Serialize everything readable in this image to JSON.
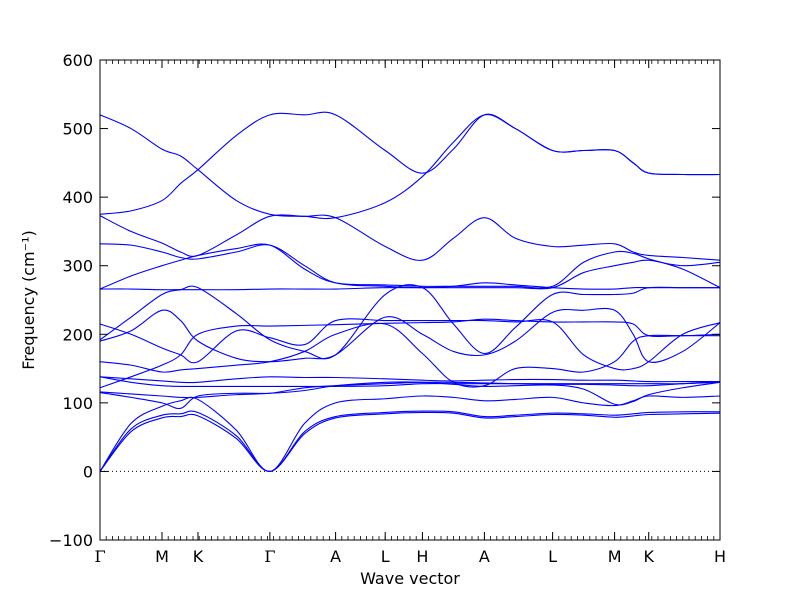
{
  "chart_data": {
    "type": "line",
    "xlabel": "Wave vector",
    "ylabel": "Frequency (cm⁻¹)",
    "ylim": [
      -100,
      600
    ],
    "y_ticks": [
      -100,
      0,
      100,
      200,
      300,
      400,
      500,
      600
    ],
    "y_tick_labels": [
      "−100",
      "0",
      "100",
      "200",
      "300",
      "400",
      "500",
      "600"
    ],
    "x_ticks": [
      0,
      1,
      1.58,
      2.74,
      3.8,
      4.6,
      5.2,
      6.2,
      7.3,
      8.3,
      8.85,
      10
    ],
    "x_tick_labels": [
      "Γ",
      "M",
      "K",
      "Γ",
      "A",
      "L",
      "H",
      "A",
      "L",
      "M",
      "K",
      "H"
    ],
    "xlim": [
      0,
      10
    ],
    "zero_line": true,
    "line_color": "#0000ff",
    "series": [
      {
        "x": [
          0,
          0.5,
          1,
          1.3,
          1.58,
          2.2,
          2.74,
          3.3,
          3.8,
          4.6,
          5.2,
          5.7,
          6.2,
          6.7,
          7.3,
          7.8,
          8.3,
          8.6,
          8.85,
          9.4,
          10
        ],
        "values": [
          0,
          58,
          78,
          80,
          81,
          48,
          0,
          55,
          78,
          84,
          86,
          85,
          78,
          80,
          83,
          82,
          79,
          81,
          83,
          84,
          85
        ]
      },
      {
        "x": [
          0,
          0.5,
          1,
          1.3,
          1.58,
          2.2,
          2.74,
          3.3,
          3.8,
          4.6,
          5.2,
          5.7,
          6.2,
          6.7,
          7.3,
          7.8,
          8.3,
          8.6,
          8.85,
          9.4,
          10
        ],
        "values": [
          0,
          62,
          82,
          84,
          86,
          52,
          0,
          58,
          80,
          86,
          88,
          87,
          80,
          82,
          85,
          84,
          82,
          84,
          86,
          87,
          87
        ]
      },
      {
        "x": [
          0,
          0.5,
          1,
          1.3,
          1.58,
          2.2,
          2.74,
          3.3,
          3.8,
          4.6,
          5.2,
          5.7,
          6.2,
          6.7,
          7.3,
          7.8,
          8.3,
          8.6,
          8.85,
          9.4,
          10
        ],
        "values": [
          0,
          70,
          95,
          103,
          105,
          60,
          0,
          70,
          100,
          106,
          110,
          108,
          103,
          105,
          108,
          100,
          96,
          103,
          110,
          108,
          110
        ]
      },
      {
        "x": [
          0,
          0.5,
          1,
          1.3,
          1.58,
          2.2,
          2.74,
          3.3,
          3.8,
          4.6,
          5.2,
          5.7,
          6.2,
          6.7,
          7.3,
          7.8,
          8.3,
          8.6,
          8.85,
          9.4,
          10
        ],
        "values": [
          115,
          108,
          100,
          92,
          110,
          114,
          114,
          118,
          125,
          130,
          130,
          127,
          124,
          125,
          126,
          120,
          98,
          102,
          112,
          122,
          130
        ]
      },
      {
        "x": [
          0,
          0.5,
          1,
          1.3,
          1.58,
          2.2,
          2.74,
          3.3,
          3.8,
          4.6,
          5.2,
          5.7,
          6.2,
          6.7,
          7.3,
          7.8,
          8.3,
          8.6,
          8.85,
          9.4,
          10
        ],
        "values": [
          116,
          113,
          110,
          108,
          108,
          112,
          114,
          122,
          125,
          128,
          130,
          130,
          129,
          128,
          127,
          127,
          126,
          125,
          125,
          128,
          131
        ]
      },
      {
        "x": [
          0,
          0.5,
          1,
          1.3,
          1.58,
          2.2,
          2.74,
          3.3,
          3.8,
          4.6,
          5.2,
          5.7,
          6.2,
          6.7,
          7.3,
          7.8,
          8.3,
          8.6,
          8.85,
          9.4,
          10
        ],
        "values": [
          122,
          138,
          155,
          170,
          200,
          212,
          212,
          213,
          214,
          216,
          217,
          218,
          222,
          220,
          218,
          218,
          218,
          215,
          198,
          198,
          198
        ]
      },
      {
        "x": [
          0,
          0.5,
          1,
          1.3,
          1.58,
          2.2,
          2.74,
          3.3,
          3.8,
          4.6,
          5.2,
          5.7,
          6.2,
          6.7,
          7.3,
          7.8,
          8.3,
          8.6,
          8.85,
          9.4,
          10
        ],
        "values": [
          138,
          135,
          132,
          130,
          130,
          135,
          138,
          137,
          137,
          135,
          133,
          132,
          133,
          134,
          134,
          133,
          133,
          132,
          131,
          131,
          131
        ]
      },
      {
        "x": [
          0,
          0.5,
          1,
          1.3,
          1.58,
          2.2,
          2.74,
          3.3,
          3.8,
          4.6,
          5.2,
          5.7,
          6.2,
          6.7,
          7.3,
          7.8,
          8.3,
          8.6,
          8.85,
          9.4,
          10
        ],
        "values": [
          138,
          130,
          125,
          124,
          124,
          124,
          124,
          124,
          124,
          125,
          128,
          128,
          128,
          128,
          128,
          128,
          128,
          128,
          128,
          128,
          130
        ]
      },
      {
        "x": [
          0,
          0.5,
          1,
          1.3,
          1.58,
          2.2,
          2.74,
          3.3,
          3.8,
          4.6,
          5.2,
          5.7,
          6.2,
          6.7,
          7.3,
          7.8,
          8.3,
          8.6,
          8.85,
          9.4,
          10
        ],
        "values": [
          160,
          155,
          145,
          148,
          150,
          155,
          160,
          175,
          200,
          215,
          172,
          130,
          125,
          150,
          150,
          145,
          160,
          190,
          198,
          198,
          200
        ]
      },
      {
        "x": [
          0,
          0.5,
          1,
          1.3,
          1.58,
          2.2,
          2.74,
          3.3,
          3.8,
          4.6,
          5.2,
          5.7,
          6.2,
          6.7,
          7.3,
          7.8,
          8.3,
          8.6,
          8.85,
          9.4,
          10
        ],
        "values": [
          190,
          205,
          235,
          220,
          190,
          165,
          160,
          165,
          170,
          225,
          200,
          175,
          170,
          190,
          232,
          235,
          235,
          200,
          160,
          175,
          217
        ]
      },
      {
        "x": [
          0,
          0.5,
          1,
          1.3,
          1.58,
          2.2,
          2.74,
          3.3,
          3.8,
          4.6,
          5.2,
          5.7,
          6.2,
          6.7,
          7.3,
          7.8,
          8.3,
          8.6,
          8.85,
          9.4,
          10
        ],
        "values": [
          215,
          200,
          180,
          170,
          160,
          205,
          195,
          185,
          220,
          220,
          220,
          220,
          220,
          218,
          218,
          170,
          150,
          150,
          160,
          200,
          217
        ]
      },
      {
        "x": [
          0,
          0.5,
          1,
          1.3,
          1.58,
          2.2,
          2.74,
          3.3,
          3.8,
          4.6,
          5.2,
          5.7,
          6.2,
          6.7,
          7.3,
          7.8,
          8.3,
          8.6,
          8.85,
          9.4,
          10
        ],
        "values": [
          192,
          225,
          258,
          265,
          268,
          230,
          192,
          175,
          170,
          258,
          268,
          215,
          172,
          210,
          258,
          258,
          258,
          260,
          268,
          268,
          268
        ]
      },
      {
        "x": [
          0,
          0.5,
          1,
          1.3,
          1.58,
          2.2,
          2.74,
          3.3,
          3.8,
          4.6,
          5.2,
          5.7,
          6.2,
          6.7,
          7.3,
          7.8,
          8.3,
          8.6,
          8.85,
          9.4,
          10
        ],
        "values": [
          266,
          266,
          265,
          265,
          265,
          265,
          266,
          266,
          266,
          268,
          268,
          270,
          275,
          272,
          268,
          266,
          266,
          268,
          268,
          268,
          268
        ]
      },
      {
        "x": [
          0,
          0.5,
          1,
          1.3,
          1.58,
          2.2,
          2.74,
          3.3,
          3.8,
          4.6,
          5.2,
          5.7,
          6.2,
          6.7,
          7.3,
          7.8,
          8.3,
          8.6,
          8.85,
          9.4,
          10
        ],
        "values": [
          266,
          285,
          300,
          308,
          315,
          325,
          330,
          295,
          275,
          272,
          270,
          270,
          270,
          270,
          270,
          305,
          320,
          318,
          310,
          295,
          268
        ]
      },
      {
        "x": [
          0,
          0.5,
          1,
          1.3,
          1.58,
          2.2,
          2.74,
          3.3,
          3.8,
          4.6,
          5.2,
          5.7,
          6.2,
          6.7,
          7.3,
          7.8,
          8.3,
          8.6,
          8.85,
          9.4,
          10
        ],
        "values": [
          332,
          330,
          320,
          312,
          310,
          320,
          330,
          300,
          275,
          270,
          268,
          268,
          268,
          268,
          268,
          290,
          300,
          305,
          308,
          300,
          305
        ]
      },
      {
        "x": [
          0,
          0.5,
          1,
          1.3,
          1.58,
          2.2,
          2.74,
          3.3,
          3.8,
          4.6,
          5.2,
          5.7,
          6.2,
          6.7,
          7.3,
          7.8,
          8.3,
          8.6,
          8.85,
          9.4,
          10
        ],
        "values": [
          373,
          350,
          333,
          320,
          315,
          345,
          372,
          372,
          370,
          328,
          308,
          340,
          370,
          340,
          328,
          330,
          332,
          320,
          315,
          312,
          308
        ]
      },
      {
        "x": [
          0,
          0.5,
          1,
          1.3,
          1.58,
          2.2,
          2.74,
          3.3,
          3.8,
          4.6,
          5.2,
          5.7,
          6.2,
          6.7,
          7.3,
          7.8,
          8.3,
          8.6,
          8.85,
          9.4,
          10
        ],
        "values": [
          375,
          380,
          395,
          420,
          440,
          490,
          520,
          520,
          520,
          468,
          435,
          470,
          520,
          500,
          468,
          468,
          468,
          450,
          435,
          433,
          433
        ]
      },
      {
        "x": [
          0,
          0.5,
          1,
          1.3,
          1.58,
          2.2,
          2.74,
          3.3,
          3.8,
          4.6,
          5.2,
          5.7,
          6.2,
          6.7,
          7.3,
          7.8,
          8.3,
          8.6,
          8.85,
          9.4,
          10
        ],
        "values": [
          520,
          500,
          470,
          460,
          440,
          395,
          375,
          372,
          370,
          392,
          430,
          480,
          520,
          500,
          468,
          468,
          468,
          450,
          435,
          433,
          433
        ]
      }
    ]
  }
}
